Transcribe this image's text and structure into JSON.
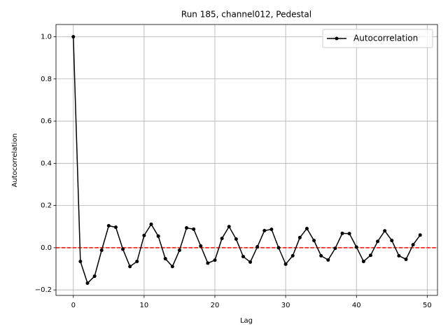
{
  "chart_data": {
    "type": "line",
    "title": "Run 185, channel012, Pedestal",
    "xlabel": "Lag",
    "ylabel": "Autocorrelation",
    "x": [
      0,
      1,
      2,
      3,
      4,
      5,
      6,
      7,
      8,
      9,
      10,
      11,
      12,
      13,
      14,
      15,
      16,
      17,
      18,
      19,
      20,
      21,
      22,
      23,
      24,
      25,
      26,
      27,
      28,
      29,
      30,
      31,
      32,
      33,
      34,
      35,
      36,
      37,
      38,
      39,
      40,
      41,
      42,
      43,
      44,
      45,
      46,
      47,
      48,
      49
    ],
    "series": [
      {
        "name": "Autocorrelation",
        "color": "#000000",
        "values": [
          1.0,
          -0.065,
          -0.168,
          -0.135,
          -0.012,
          0.104,
          0.097,
          -0.007,
          -0.089,
          -0.065,
          0.058,
          0.111,
          0.055,
          -0.052,
          -0.089,
          -0.012,
          0.094,
          0.088,
          0.008,
          -0.073,
          -0.059,
          0.044,
          0.1,
          0.041,
          -0.042,
          -0.068,
          0.004,
          0.081,
          0.087,
          0.0,
          -0.078,
          -0.038,
          0.048,
          0.091,
          0.034,
          -0.038,
          -0.058,
          -0.003,
          0.068,
          0.067,
          0.003,
          -0.065,
          -0.036,
          0.03,
          0.08,
          0.034,
          -0.038,
          -0.055,
          0.014,
          0.06
        ]
      }
    ],
    "hline": 0,
    "hline_color": "#ff0000",
    "xlim": [
      -2.45,
      51.45
    ],
    "ylim": [
      -0.226,
      1.058
    ],
    "xticks": [
      0,
      10,
      20,
      30,
      40,
      50
    ],
    "yticks": [
      {
        "value": -0.2,
        "label": "−0.2"
      },
      {
        "value": 0,
        "label": "0.0"
      },
      0.2,
      0.4,
      0.6,
      0.8,
      {
        "value": 1,
        "label": "1.0"
      }
    ],
    "grid": true,
    "legend": "upper right"
  }
}
